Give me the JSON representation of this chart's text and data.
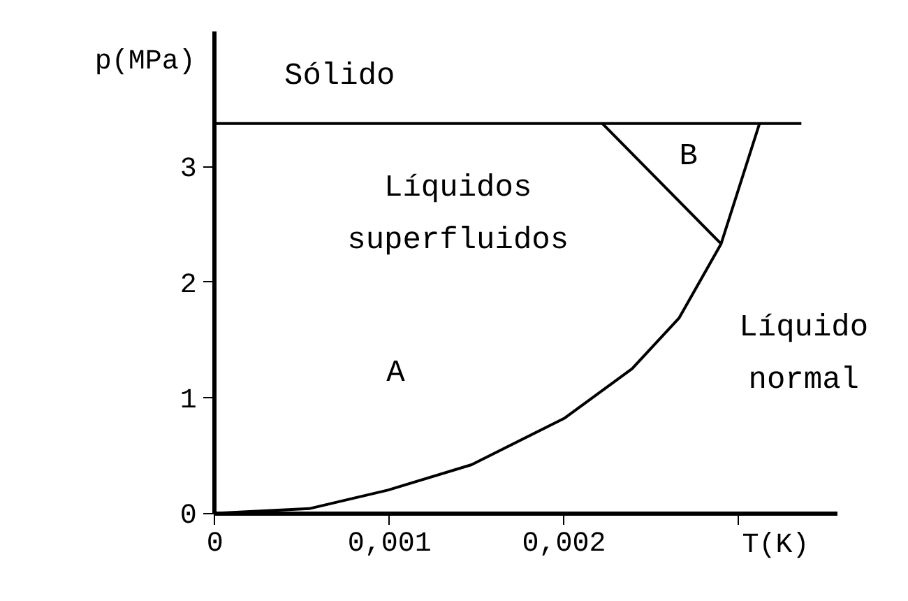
{
  "chart_data": {
    "type": "line",
    "xlabel": "T(K)",
    "ylabel": "p(MPa)",
    "xlim": [
      0,
      0.00357
    ],
    "ylim": [
      0,
      4.17
    ],
    "xticks": [
      0,
      {
        "value": 0.001,
        "label": "0,001"
      },
      {
        "value": 0.002,
        "label": "0,002"
      },
      {
        "value": 0.003,
        "label": null
      }
    ],
    "yticks": [
      0,
      1,
      2,
      3
    ],
    "grid": false,
    "series": [
      {
        "color": "#000000",
        "x": [
          0,
          0.00054,
          0.00099,
          0.00147,
          0.002,
          0.00239,
          0.00266,
          0.0029,
          0.00312
        ],
        "values": [
          0,
          0.04,
          0.2,
          0.42,
          0.82,
          1.25,
          1.69,
          2.33,
          3.37
        ]
      },
      {
        "color": "#000000",
        "x": [
          0,
          0.00336
        ],
        "values": [
          3.37,
          3.37
        ]
      },
      {
        "color": "#000000",
        "x": [
          0.00222,
          0.0029
        ],
        "values": [
          3.37,
          2.33
        ]
      }
    ],
    "annotations": [
      "Sólido",
      "Líquidos\nsuperfluidos",
      "A",
      "B",
      "Líquido\nnormal"
    ]
  }
}
